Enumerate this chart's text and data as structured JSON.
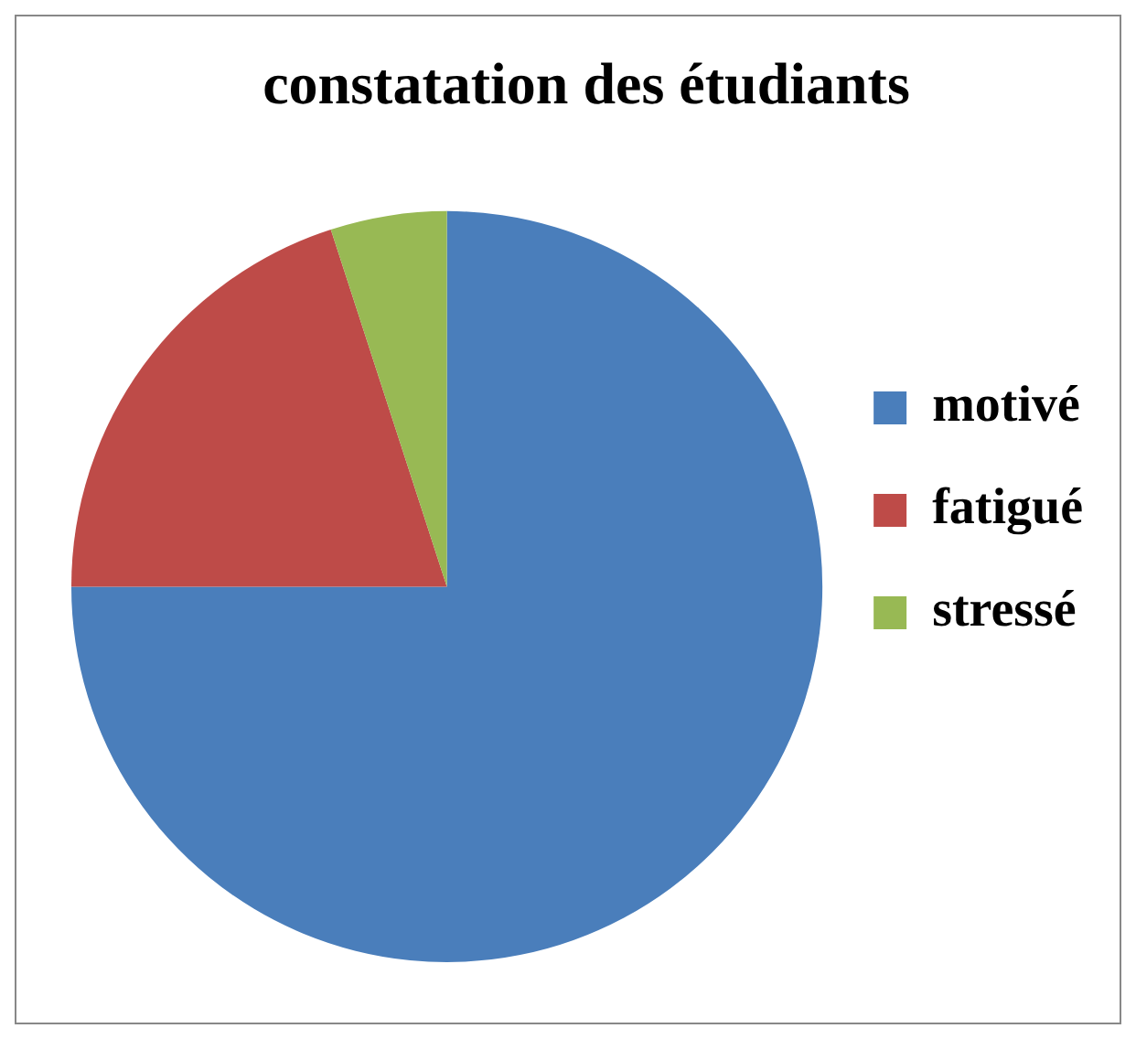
{
  "chart_data": {
    "type": "pie",
    "title": "constatation des étudiants",
    "categories": [
      "motivé",
      "fatigué",
      "stressé"
    ],
    "values": [
      75,
      20,
      5
    ],
    "colors": [
      "#4a7ebb",
      "#be4b48",
      "#98b954"
    ],
    "legend": "right"
  }
}
